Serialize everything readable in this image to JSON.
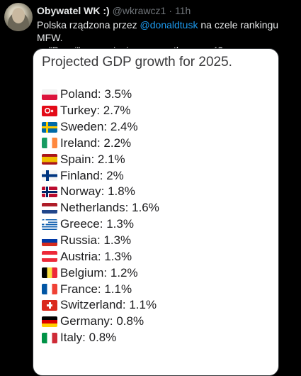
{
  "tweet": {
    "author_name": "Obywatel WK :)",
    "handle": "@wkrawcz1",
    "separator": "·",
    "time": "11h",
    "text_before_mention": "Polska rządzona przez ",
    "mention": "@donaldtusk",
    "text_after_mention": " na czele rankingu MFW.",
    "text_line2": "- \"Prawi\", rozumiecie czy przetłumaczyć?"
  },
  "card": {
    "title": "Projected GDP growth for 2025.",
    "items": [
      {
        "flag": "pl-flag-icon",
        "text": "Poland: 3.5%"
      },
      {
        "flag": "tr-flag-icon",
        "text": "Turkey: 2.7%"
      },
      {
        "flag": "se-flag-icon",
        "text": "Sweden: 2.4%"
      },
      {
        "flag": "ie-flag-icon",
        "text": "Ireland: 2.2%"
      },
      {
        "flag": "es-flag-icon",
        "text": "Spain: 2.1%"
      },
      {
        "flag": "fi-flag-icon",
        "text": "Finland: 2%"
      },
      {
        "flag": "no-flag-icon",
        "text": "Norway: 1.8%"
      },
      {
        "flag": "nl-flag-icon",
        "text": "Netherlands: 1.6%"
      },
      {
        "flag": "gr-flag-icon",
        "text": "Greece: 1.3%"
      },
      {
        "flag": "ru-flag-icon",
        "text": "Russia: 1.3%"
      },
      {
        "flag": "at-flag-icon",
        "text": "Austria: 1.3%"
      },
      {
        "flag": "be-flag-icon",
        "text": "Belgium: 1.2%"
      },
      {
        "flag": "fr-flag-icon",
        "text": "France: 1.1%"
      },
      {
        "flag": "ch-flag-icon",
        "text": "Switzerland: 1.1%"
      },
      {
        "flag": "de-flag-icon",
        "text": "Germany: 0.8%"
      },
      {
        "flag": "it-flag-icon",
        "text": "Italy: 0.8%"
      }
    ]
  },
  "colors": {
    "background": "#000000",
    "text": "#e7e9ea",
    "muted": "#71767b",
    "link": "#1d9bf0",
    "card_bg": "#ffffff"
  }
}
